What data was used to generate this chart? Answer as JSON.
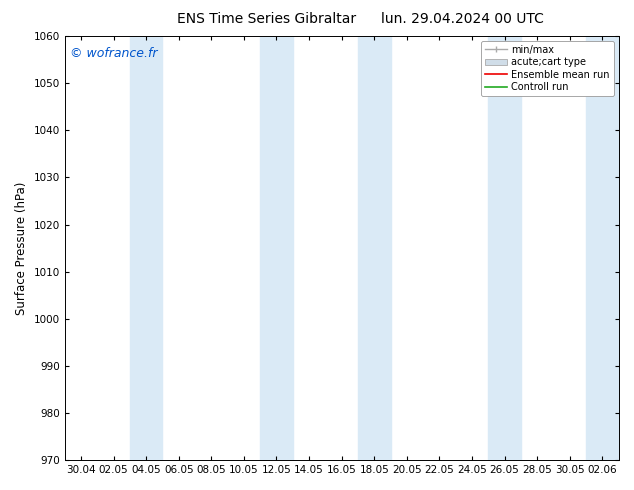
{
  "title_left": "ENS Time Series Gibraltar",
  "title_right": "lun. 29.04.2024 00 UTC",
  "ylabel": "Surface Pressure (hPa)",
  "ylim": [
    970,
    1060
  ],
  "yticks": [
    970,
    980,
    990,
    1000,
    1010,
    1020,
    1030,
    1040,
    1050,
    1060
  ],
  "xlabel_dates": [
    "30.04",
    "02.05",
    "04.05",
    "06.05",
    "08.05",
    "10.05",
    "12.05",
    "14.05",
    "16.05",
    "18.05",
    "20.05",
    "22.05",
    "24.05",
    "26.05",
    "28.05",
    "30.05",
    "02.06"
  ],
  "watermark": "© wofrance.fr",
  "watermark_color": "#0055cc",
  "bg_color": "#ffffff",
  "plot_bg_color": "#ffffff",
  "band_color": "#daeaf6",
  "legend_labels": [
    "min/max",
    "acute;cart type",
    "Ensemble mean run",
    "Controll run"
  ],
  "title_fontsize": 10,
  "tick_fontsize": 7.5,
  "ylabel_fontsize": 8.5,
  "watermark_fontsize": 9
}
